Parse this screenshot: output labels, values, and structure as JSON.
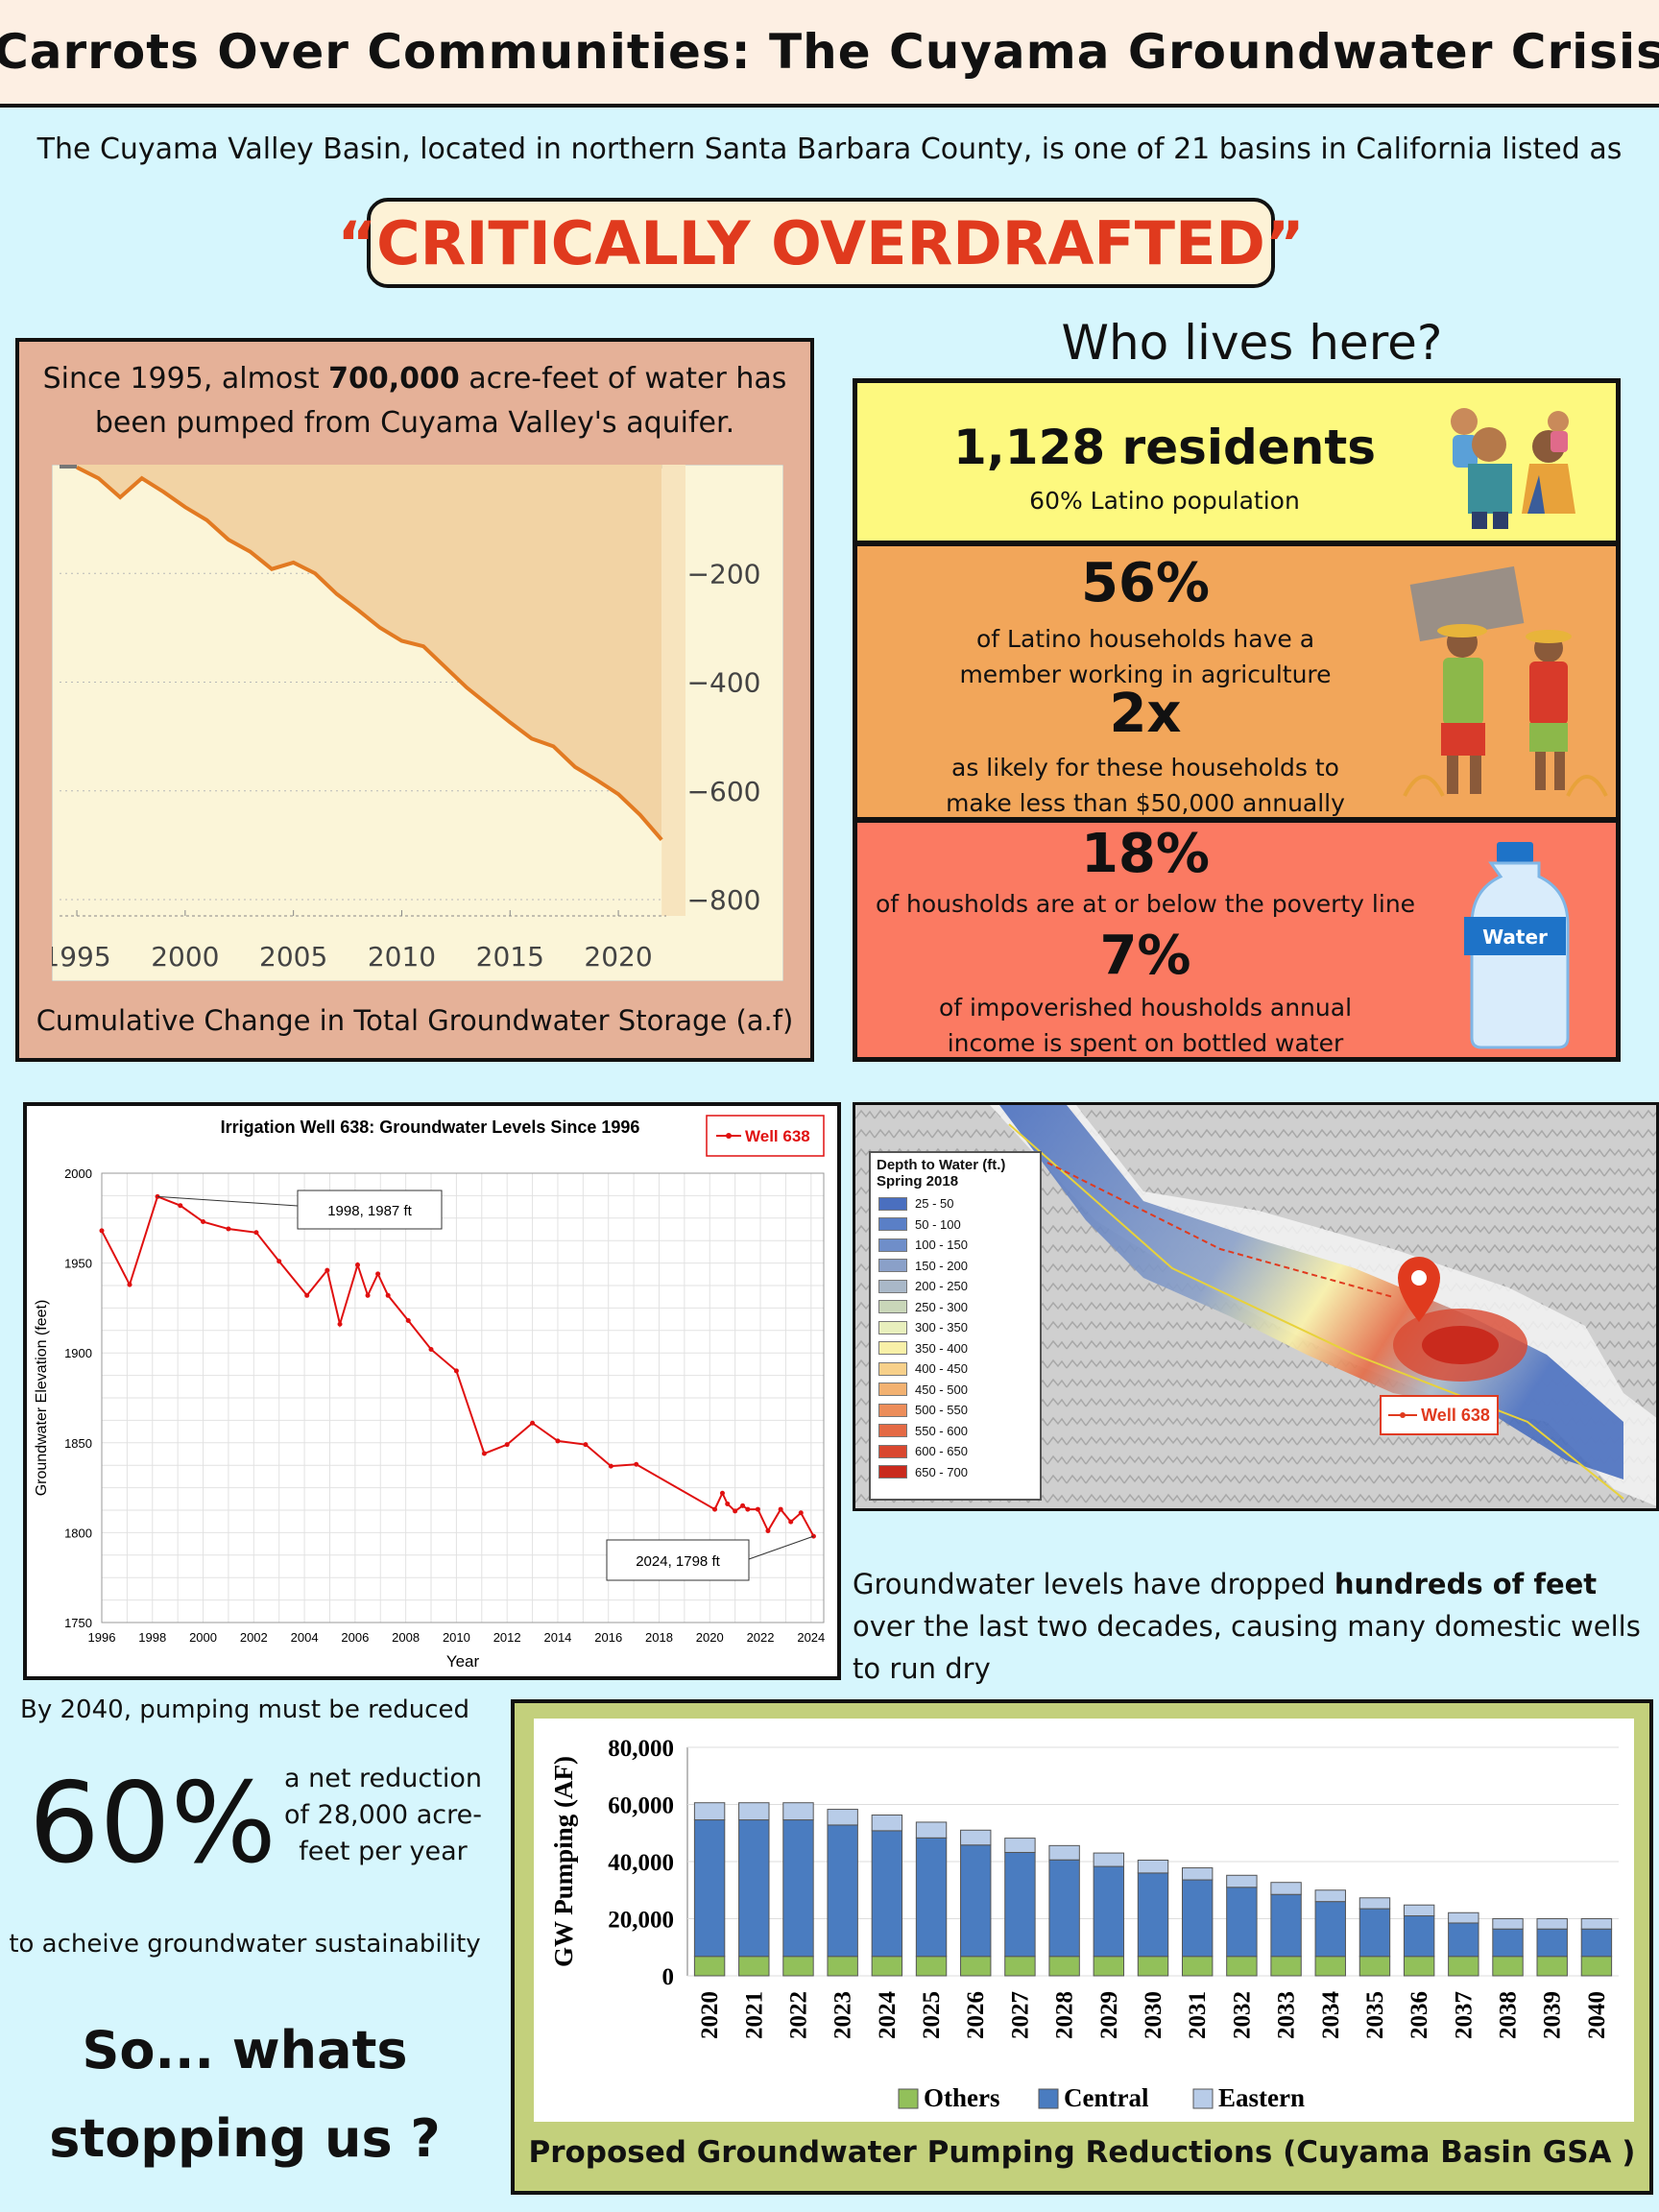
{
  "header": {
    "title": "Carrots Over Communities: The Cuyama Groundwater Crisis"
  },
  "intro": {
    "text": "The Cuyama Valley Basin, located in northern Santa Barbara County, is one of 21 basins in California listed as",
    "highlight": "“CRITICALLY OVERDRAFTED”"
  },
  "storage": {
    "caption_top_1": "Since 1995, almost ",
    "caption_top_bold": "700,000",
    "caption_top_2": " acre-feet of water has been pumped from Cuyama Valley's aquifer.",
    "caption_bottom": "Cumulative Change in Total Groundwater Storage (a.f)"
  },
  "who": {
    "title": "Who lives here?",
    "residents": "1,128 residents",
    "latino": "60% Latino population",
    "ag_pct": "56%",
    "ag_text": "of Latino households have a member working in agriculture",
    "likely": "2x",
    "likely_text": "as likely for these households to make less than $50,000 annually",
    "poverty_pct": "18%",
    "poverty_text": "of housholds are at or below the poverty line",
    "water_pct": "7%",
    "water_text": "of impoverished housholds annual income is spent on bottled water",
    "bottle_label": "Water"
  },
  "map": {
    "legend_title": "Depth to Water (ft.) Spring 2018",
    "legend_items": [
      "25 - 50",
      "50 - 100",
      "100 - 150",
      "150 - 200",
      "200 - 250",
      "250 - 300",
      "300 - 350",
      "350 - 400",
      "400 - 450",
      "450 - 500",
      "500 - 550",
      "550 - 600",
      "600 - 650",
      "650 - 700"
    ],
    "legend_colors": [
      "#4a6fbf",
      "#5a7fc6",
      "#6f8ec9",
      "#8aa0c8",
      "#a9b8c8",
      "#c9d6b9",
      "#e8efbd",
      "#f8f0a8",
      "#f7d08a",
      "#f2b171",
      "#ec8d5a",
      "#e46a45",
      "#d9472f",
      "#c92a1d"
    ],
    "well_label": "Well 638"
  },
  "gw_text": {
    "part1": "Groundwater levels have dropped ",
    "bold": "hundreds of feet",
    "part2": " over the last two decades, causing many domestic wells to run dry"
  },
  "reduction": {
    "by2040": "By 2040, pumping must be reduced",
    "pct": "60%",
    "net": "a net reduction of 28,000 acre-feet per year",
    "acheive": "to acheive groundwater sustainability",
    "stopping": "So... whats stopping us ?"
  },
  "pumping_caption": "Proposed Groundwater Pumping Reductions (Cuyama Basin GSA )",
  "chart_data": [
    {
      "type": "area",
      "title": "",
      "xlabel": "",
      "ylabel": "",
      "x": [
        1995,
        1996,
        1997,
        1998,
        1999,
        2000,
        2001,
        2002,
        2003,
        2004,
        2005,
        2006,
        2007,
        2008,
        2009,
        2010,
        2011,
        2012,
        2013,
        2014,
        2015,
        2016,
        2017,
        2018,
        2019,
        2020,
        2021,
        2022
      ],
      "values": [
        -5,
        -25,
        -60,
        -25,
        -50,
        -78,
        -102,
        -138,
        -160,
        -192,
        -180,
        -200,
        -238,
        -268,
        -300,
        -324,
        -334,
        -372,
        -410,
        -442,
        -474,
        -504,
        -518,
        -556,
        -580,
        -606,
        -644,
        -690
      ],
      "xticks": [
        1995,
        2000,
        2005,
        2010,
        2015,
        2020
      ],
      "yticks": [
        -200,
        -400,
        -600,
        -800
      ],
      "xlim": [
        1994.2,
        2023.1
      ],
      "ylim": [
        -830,
        0
      ],
      "grid": true
    },
    {
      "type": "line",
      "title": "Irrigation Well 638: Groundwater Levels Since 1996",
      "xlabel": "Year",
      "ylabel": "Groundwater Elevation (feet)",
      "series": [
        {
          "name": "Well 638",
          "x": [
            1996,
            1997.1,
            1998.2,
            1999.1,
            2000,
            2001,
            2002.1,
            2003,
            2004.1,
            2004.9,
            2005.4,
            2006.1,
            2006.5,
            2006.9,
            2007.3,
            2008.1,
            2009,
            2010,
            2011.1,
            2012,
            2013,
            2014,
            2015.1,
            2016.1,
            2017.1,
            2020.2,
            2020.5,
            2020.7,
            2021,
            2021.3,
            2021.5,
            2021.9,
            2022.3,
            2022.8,
            2023.2,
            2023.6,
            2024.1
          ],
          "y": [
            1968,
            1938,
            1987,
            1982,
            1973,
            1969,
            1967,
            1951,
            1932,
            1946,
            1916,
            1949,
            1932,
            1944,
            1932,
            1918,
            1902,
            1890,
            1844,
            1849,
            1861,
            1851,
            1849,
            1837,
            1838,
            1813,
            1822,
            1816,
            1812,
            1815,
            1813,
            1813,
            1801,
            1813,
            1806,
            1811,
            1798
          ]
        }
      ],
      "xticks": [
        1996,
        1998,
        2000,
        2002,
        2004,
        2006,
        2008,
        2010,
        2012,
        2014,
        2016,
        2018,
        2020,
        2022,
        2024
      ],
      "yticks": [
        1750,
        1800,
        1850,
        1900,
        1950,
        2000
      ],
      "xlim": [
        1996,
        2024.5
      ],
      "ylim": [
        1750,
        2000
      ],
      "annotations": [
        {
          "text": "1998, 1987 ft",
          "x": 1998.2,
          "y": 1987
        },
        {
          "text": "2024, 1798 ft",
          "x": 2024.1,
          "y": 1798
        }
      ],
      "legend": "top-right",
      "grid": true
    },
    {
      "type": "bar",
      "title": "",
      "xlabel": "",
      "ylabel": "GW Pumping (AF)",
      "categories": [
        "2020",
        "2021",
        "2022",
        "2023",
        "2024",
        "2025",
        "2026",
        "2027",
        "2028",
        "2029",
        "2030",
        "2031",
        "2032",
        "2033",
        "2034",
        "2035",
        "2036",
        "2037",
        "2038",
        "2039",
        "2040"
      ],
      "series": [
        {
          "name": "Others",
          "color": "#92c05a",
          "values": [
            6800,
            6800,
            6800,
            6800,
            6800,
            6800,
            6800,
            6800,
            6800,
            6800,
            6800,
            6800,
            6800,
            6800,
            6800,
            6800,
            6800,
            6800,
            6800,
            6800,
            6800
          ]
        },
        {
          "name": "Central",
          "color": "#4a7cc0",
          "values": [
            47800,
            47800,
            47800,
            46000,
            44000,
            41500,
            39000,
            36400,
            33800,
            31500,
            29200,
            26800,
            24200,
            21700,
            19200,
            16700,
            14200,
            11700,
            9600,
            9600,
            9600
          ]
        },
        {
          "name": "Eastern",
          "color": "#b8cce8",
          "values": [
            6000,
            6000,
            6000,
            5500,
            5500,
            5500,
            5200,
            5000,
            5000,
            4700,
            4500,
            4200,
            4200,
            4200,
            4000,
            3800,
            3800,
            3600,
            3600,
            3600,
            3600
          ]
        }
      ],
      "stacked": true,
      "yticks": [
        0,
        20000,
        40000,
        60000,
        80000
      ],
      "ytick_labels": [
        "0",
        "20,000",
        "40,000",
        "60,000",
        "80,000"
      ],
      "ylim": [
        0,
        80000
      ],
      "legend": "bottom"
    }
  ]
}
